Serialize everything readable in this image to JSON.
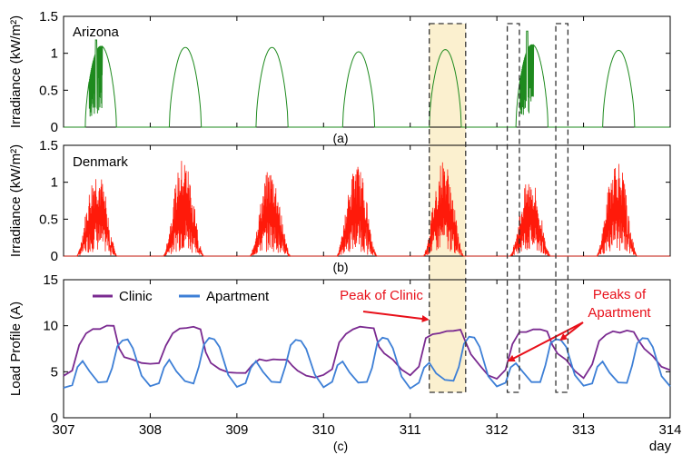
{
  "chart_data": [
    {
      "type": "line",
      "panel": "a",
      "title": "Arizona",
      "ylabel": "Irradiance (kW/m²)",
      "ylim": [
        0,
        1.5
      ],
      "yticks": [
        "0",
        "0.5",
        "1",
        "1.5"
      ],
      "xlim": [
        307,
        314
      ],
      "color": "#1e8a1e",
      "caption": "(a)",
      "days": [
        {
          "rise": 307.25,
          "set": 307.61,
          "peak": 1.1,
          "noisy": true,
          "spike": 1.18
        },
        {
          "rise": 308.22,
          "set": 308.59,
          "peak": 1.08,
          "noisy": false
        },
        {
          "rise": 309.22,
          "set": 309.59,
          "peak": 1.08,
          "noisy": false
        },
        {
          "rise": 310.22,
          "set": 310.59,
          "peak": 1.02,
          "noisy": false
        },
        {
          "rise": 311.22,
          "set": 311.59,
          "peak": 1.05,
          "noisy": false
        },
        {
          "rise": 312.22,
          "set": 312.59,
          "peak": 1.12,
          "noisy": true,
          "spike": 1.3
        },
        {
          "rise": 313.22,
          "set": 313.59,
          "peak": 1.04,
          "noisy": false
        }
      ]
    },
    {
      "type": "line",
      "panel": "b",
      "title": "Denmark",
      "ylabel": "Irradiance (kW/m²)",
      "ylim": [
        0,
        1.5
      ],
      "yticks": [
        "0",
        "0.5",
        "1",
        "1.5"
      ],
      "xlim": [
        307,
        314
      ],
      "color": "#ff1a0a",
      "caption": "(b)",
      "days": [
        {
          "rise": 307.15,
          "set": 307.62,
          "peak": 1.2,
          "noisy": true
        },
        {
          "rise": 308.15,
          "set": 308.62,
          "peak": 1.35,
          "noisy": true
        },
        {
          "rise": 309.15,
          "set": 309.62,
          "peak": 1.2,
          "noisy": true
        },
        {
          "rise": 310.15,
          "set": 310.62,
          "peak": 1.25,
          "noisy": true
        },
        {
          "rise": 311.15,
          "set": 311.62,
          "peak": 1.32,
          "noisy": true
        },
        {
          "rise": 312.15,
          "set": 312.62,
          "peak": 1.08,
          "noisy": true
        },
        {
          "rise": 313.15,
          "set": 313.62,
          "peak": 1.35,
          "noisy": true
        }
      ]
    },
    {
      "type": "line",
      "panel": "c",
      "ylabel": "Load Profile (A)",
      "ylim": [
        0,
        15
      ],
      "yticks": [
        "0",
        "5",
        "10",
        "15"
      ],
      "xlim": [
        307,
        314
      ],
      "xticks": [
        "307",
        "308",
        "309",
        "310",
        "311",
        "312",
        "313",
        "314"
      ],
      "xunit": "day",
      "caption": "(c)",
      "series": [
        {
          "name": "Clinic",
          "color": "#7a2a90",
          "x": [
            307.0,
            307.1,
            307.18,
            307.26,
            307.34,
            307.42,
            307.5,
            307.58,
            307.64,
            307.7,
            307.8,
            307.9,
            308.0,
            308.1,
            308.18,
            308.26,
            308.34,
            308.42,
            308.5,
            308.58,
            308.64,
            308.7,
            308.8,
            308.9,
            309.0,
            309.1,
            309.18,
            309.26,
            309.34,
            309.42,
            309.5,
            309.58,
            309.64,
            309.7,
            309.8,
            309.9,
            310.0,
            310.1,
            310.18,
            310.26,
            310.34,
            310.42,
            310.5,
            310.58,
            310.64,
            310.7,
            310.8,
            310.9,
            311.0,
            311.1,
            311.18,
            311.26,
            311.34,
            311.42,
            311.5,
            311.58,
            311.64,
            311.7,
            311.8,
            311.9,
            312.0,
            312.1,
            312.18,
            312.26,
            312.34,
            312.42,
            312.5,
            312.58,
            312.64,
            312.7,
            312.8,
            312.9,
            313.0,
            313.1,
            313.18,
            313.26,
            313.34,
            313.42,
            313.5,
            313.58,
            313.64,
            313.7,
            313.8,
            313.9,
            314.0
          ],
          "y": [
            4.6,
            5.2,
            7.8,
            9.2,
            9.6,
            9.7,
            9.9,
            10.0,
            7.6,
            6.6,
            6.2,
            5.9,
            5.9,
            5.9,
            7.8,
            9.3,
            9.6,
            9.7,
            9.8,
            9.7,
            7.2,
            6.0,
            5.2,
            4.9,
            4.8,
            4.9,
            5.8,
            6.3,
            6.3,
            6.3,
            6.3,
            6.3,
            5.7,
            5.1,
            4.7,
            4.4,
            4.7,
            5.4,
            8.2,
            9.2,
            9.5,
            9.8,
            9.8,
            9.8,
            7.8,
            6.9,
            6.4,
            5.2,
            4.6,
            5.6,
            8.6,
            9.2,
            9.3,
            9.3,
            9.4,
            9.5,
            8.2,
            6.8,
            5.6,
            4.7,
            4.3,
            5.1,
            7.9,
            9.2,
            9.4,
            9.6,
            9.6,
            9.5,
            8.0,
            7.0,
            6.4,
            5.1,
            4.2,
            5.8,
            8.3,
            9.0,
            9.3,
            9.3,
            9.4,
            9.3,
            8.3,
            7.4,
            6.8,
            5.6,
            5.2
          ]
        },
        {
          "name": "Apartment",
          "color": "#3d7fd6",
          "x": [
            307.0,
            307.1,
            307.16,
            307.22,
            307.3,
            307.4,
            307.5,
            307.56,
            307.62,
            307.68,
            307.74,
            307.8,
            307.9,
            308.0,
            308.1,
            308.16,
            308.22,
            308.3,
            308.4,
            308.5,
            308.56,
            308.62,
            308.68,
            308.74,
            308.8,
            308.9,
            309.0,
            309.1,
            309.16,
            309.22,
            309.3,
            309.4,
            309.5,
            309.56,
            309.62,
            309.68,
            309.74,
            309.8,
            309.9,
            310.0,
            310.1,
            310.16,
            310.22,
            310.3,
            310.4,
            310.5,
            310.56,
            310.62,
            310.68,
            310.74,
            310.8,
            310.9,
            311.0,
            311.1,
            311.16,
            311.22,
            311.3,
            311.4,
            311.5,
            311.56,
            311.62,
            311.68,
            311.74,
            311.8,
            311.9,
            312.0,
            312.1,
            312.16,
            312.22,
            312.3,
            312.4,
            312.5,
            312.56,
            312.62,
            312.68,
            312.74,
            312.8,
            312.9,
            313.0,
            313.1,
            313.16,
            313.22,
            313.3,
            313.4,
            313.5,
            313.56,
            313.62,
            313.68,
            313.74,
            313.8,
            313.9,
            314.0
          ],
          "y": [
            3.3,
            3.6,
            5.4,
            6.2,
            5.0,
            3.9,
            3.8,
            5.4,
            7.8,
            8.4,
            8.4,
            7.5,
            4.6,
            3.4,
            3.7,
            5.6,
            6.2,
            5.0,
            3.9,
            3.8,
            5.6,
            8.0,
            8.6,
            8.5,
            7.6,
            4.7,
            3.4,
            3.7,
            5.5,
            6.1,
            5.0,
            3.9,
            3.9,
            5.6,
            8.0,
            8.5,
            8.4,
            7.6,
            4.7,
            3.4,
            3.8,
            5.6,
            6.1,
            5.0,
            3.9,
            3.8,
            5.5,
            8.1,
            8.7,
            8.6,
            7.5,
            4.6,
            3.3,
            3.7,
            5.4,
            5.9,
            4.8,
            4.0,
            3.9,
            5.6,
            8.1,
            8.7,
            8.6,
            7.6,
            4.6,
            3.4,
            3.8,
            5.6,
            6.0,
            5.0,
            4.0,
            3.9,
            5.6,
            8.1,
            8.5,
            8.4,
            7.6,
            4.7,
            3.4,
            3.7,
            5.5,
            6.0,
            5.0,
            3.9,
            3.8,
            5.6,
            8.1,
            8.6,
            8.5,
            7.6,
            4.6,
            3.5
          ]
        }
      ],
      "annotations": [
        {
          "text": "Peak of Clinic",
          "target_x": 311.22,
          "target_y": 9.3
        },
        {
          "text": "Peaks of",
          "text2": "Apartment",
          "targets": [
            {
              "x": 312.12,
              "y": 6.0
            },
            {
              "x": 312.72,
              "y": 8.3
            }
          ]
        }
      ]
    }
  ],
  "highlights": [
    {
      "from": 311.22,
      "to": 311.64,
      "shaded": true
    },
    {
      "from": 312.12,
      "to": 312.26,
      "shaded": false
    },
    {
      "from": 312.68,
      "to": 312.82,
      "shaded": false
    }
  ]
}
